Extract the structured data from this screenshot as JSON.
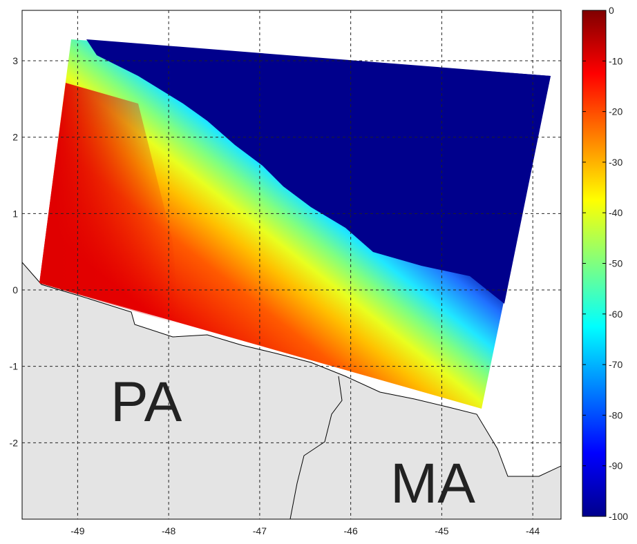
{
  "chart_data": {
    "type": "map",
    "xlim": [
      -49.61,
      -43.69
    ],
    "xticks": [
      -49,
      -48,
      -47,
      -46,
      -45,
      -44
    ],
    "ylim": [
      -3.0,
      3.66
    ],
    "yticks": [
      3,
      2,
      1,
      0,
      -1,
      -2
    ],
    "grid": true,
    "colorbar": {
      "lim": [
        -100,
        0
      ],
      "ticks": [
        0,
        -10,
        -20,
        -30,
        -40,
        -50,
        -60,
        -70,
        -80,
        -90,
        -100
      ]
    },
    "labels": [
      "PA",
      "MA"
    ]
  }
}
